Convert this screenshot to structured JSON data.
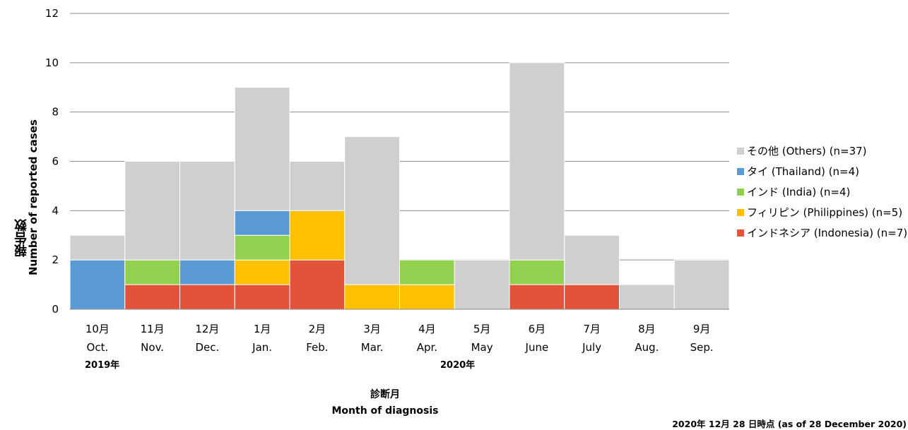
{
  "chart_data": {
    "type": "bar",
    "stacked": true,
    "categories": [
      {
        "jp": "10月",
        "en": "Oct."
      },
      {
        "jp": "11月",
        "en": "Nov."
      },
      {
        "jp": "12月",
        "en": "Dec."
      },
      {
        "jp": "1月",
        "en": "Jan."
      },
      {
        "jp": "2月",
        "en": "Feb."
      },
      {
        "jp": "3月",
        "en": "Mar."
      },
      {
        "jp": "4月",
        "en": "Apr."
      },
      {
        "jp": "5月",
        "en": "May"
      },
      {
        "jp": "6月",
        "en": "June"
      },
      {
        "jp": "7月",
        "en": "July"
      },
      {
        "jp": "8月",
        "en": "Aug."
      },
      {
        "jp": "9月",
        "en": "Sep."
      }
    ],
    "series": [
      {
        "name": "インドネシア (Indonesia)",
        "n": "(n=7)",
        "color": "#e2533a",
        "values": [
          0,
          1,
          1,
          1,
          2,
          0,
          0,
          0,
          1,
          1,
          0,
          0
        ]
      },
      {
        "name": "フィリピン (Philippines)",
        "n": "(n=5)",
        "color": "#ffc000",
        "values": [
          0,
          0,
          0,
          1,
          2,
          1,
          1,
          0,
          0,
          0,
          0,
          0
        ]
      },
      {
        "name": "インド (India)",
        "n": "(n=4)",
        "color": "#92d050",
        "values": [
          0,
          1,
          0,
          1,
          0,
          0,
          1,
          0,
          1,
          0,
          0,
          0
        ]
      },
      {
        "name": "タイ (Thailand)",
        "n": "(n=4)",
        "color": "#5b9bd5",
        "values": [
          2,
          0,
          1,
          1,
          0,
          0,
          0,
          0,
          0,
          0,
          0,
          0
        ]
      },
      {
        "name": "その他 (Others)",
        "n": "(n=37)",
        "color": "#d0cecf",
        "values": [
          1,
          4,
          4,
          5,
          2,
          6,
          0,
          2,
          8,
          2,
          1,
          2
        ]
      }
    ],
    "ylim": [
      0,
      12
    ],
    "yticks": [
      0,
      2,
      4,
      6,
      8,
      10,
      12
    ],
    "grid": true,
    "legend_position": "right",
    "year_labels": {
      "first": "2019年",
      "second": "2020年"
    }
  },
  "labels": {
    "ylabel_jp": "報告数",
    "ylabel_en": "Number of reported cases",
    "xlabel_jp": "診断月",
    "xlabel_en": "Month of diagnosis",
    "note": "2020年 12月 28 日時点 (as of 28 December 2020)"
  }
}
